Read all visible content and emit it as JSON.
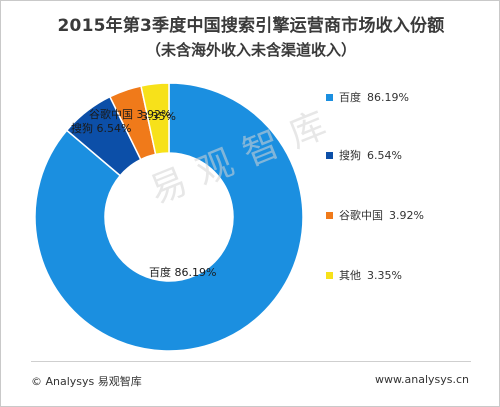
{
  "chart_data": {
    "type": "pie",
    "donut": true,
    "title": "2015年第3季度中国搜索引擎运营商市场收入份额",
    "subtitle": "（未含海外收入未含渠道收入）",
    "unit": "%",
    "slices": [
      {
        "name": "百度",
        "value": 86.19,
        "value_text": "86.19%",
        "color": "#1B8FE0"
      },
      {
        "name": "搜狗",
        "value": 6.54,
        "value_text": "6.54%",
        "color": "#0C4FA8"
      },
      {
        "name": "谷歌中国",
        "value": 3.92,
        "value_text": "3.92%",
        "color": "#F07A1A"
      },
      {
        "name": "其他",
        "value": 3.35,
        "value_text": "3.35%",
        "color": "#F7E11A"
      }
    ],
    "legend_position": "right"
  },
  "watermark": "易观智库",
  "footer": {
    "source": "© Analysys 易观智库",
    "website": "www.analysys.cn"
  }
}
